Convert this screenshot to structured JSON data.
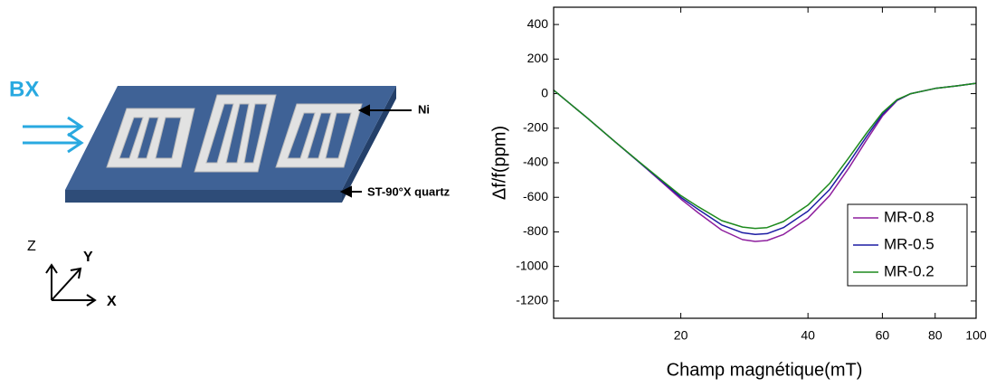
{
  "diagram": {
    "field_label": "BX",
    "layer_label": "Ni",
    "substrate_label": "ST-90°X quartz",
    "axis_z": "Z",
    "axis_y": "Y",
    "axis_x": "X"
  },
  "chart_data": {
    "type": "line",
    "x_label": "Champ magnétique(mT)",
    "y_label": "Δf/f(ppm)",
    "x": [
      10,
      12,
      14,
      16,
      18,
      20,
      22,
      25,
      28,
      30,
      32,
      35,
      40,
      45,
      50,
      55,
      60,
      65,
      70,
      80,
      90,
      100
    ],
    "series": [
      {
        "name": "MR-0.8",
        "color": "#8e1f9e",
        "values": [
          20,
          -140,
          -280,
          -400,
          -510,
          -610,
          -690,
          -790,
          -845,
          -855,
          -850,
          -815,
          -720,
          -590,
          -430,
          -270,
          -130,
          -40,
          0,
          30,
          45,
          60
        ]
      },
      {
        "name": "MR-0.5",
        "color": "#1c1ca3",
        "values": [
          20,
          -140,
          -280,
          -400,
          -505,
          -600,
          -670,
          -760,
          -805,
          -815,
          -810,
          -775,
          -680,
          -555,
          -400,
          -250,
          -120,
          -38,
          0,
          30,
          45,
          60
        ]
      },
      {
        "name": "MR-0.2",
        "color": "#1d8a1d",
        "values": [
          20,
          -140,
          -280,
          -398,
          -500,
          -590,
          -655,
          -735,
          -772,
          -780,
          -775,
          -740,
          -645,
          -520,
          -370,
          -230,
          -110,
          -35,
          0,
          30,
          45,
          60
        ]
      }
    ],
    "xlim": [
      10,
      100
    ],
    "xticks": [
      20,
      40,
      60,
      80,
      100
    ],
    "log_x": true,
    "ylim": [
      -1300,
      500
    ],
    "yticks": [
      -1200,
      -1000,
      -800,
      -600,
      -400,
      -200,
      0,
      200,
      400
    ],
    "legend": "lower-right"
  }
}
